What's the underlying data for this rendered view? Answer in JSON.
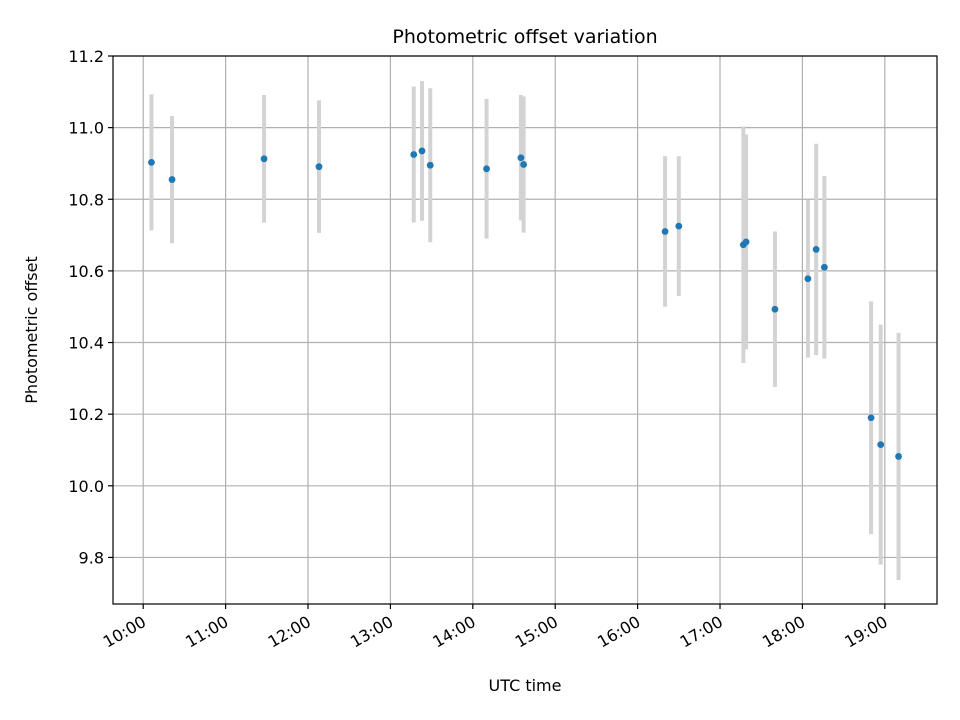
{
  "chart_data": {
    "type": "scatter",
    "title": "Photometric offset variation",
    "xlabel": "UTC time",
    "ylabel": "Photometric offset",
    "x_unit": "hours UTC",
    "xlim": [
      "09:38",
      "19:38"
    ],
    "ylim": [
      9.67,
      11.2
    ],
    "x_ticks": [
      "10:00",
      "11:00",
      "12:00",
      "13:00",
      "14:00",
      "15:00",
      "16:00",
      "17:00",
      "18:00",
      "19:00"
    ],
    "y_ticks": [
      "9.8",
      "10.0",
      "10.2",
      "10.4",
      "10.6",
      "10.8",
      "11.0",
      "11.2"
    ],
    "grid": true,
    "legend": "none",
    "point_color": "#1f77b4",
    "errorbar_color": "#d3d3d3",
    "points": [
      {
        "x": "10:06",
        "y": 10.903,
        "err": 0.19
      },
      {
        "x": "10:21",
        "y": 10.855,
        "err": 0.178
      },
      {
        "x": "11:28",
        "y": 10.913,
        "err": 0.178
      },
      {
        "x": "12:08",
        "y": 10.891,
        "err": 0.185
      },
      {
        "x": "13:17",
        "y": 10.925,
        "err": 0.19
      },
      {
        "x": "13:23",
        "y": 10.935,
        "err": 0.195
      },
      {
        "x": "13:29",
        "y": 10.895,
        "err": 0.215
      },
      {
        "x": "14:10",
        "y": 10.885,
        "err": 0.195
      },
      {
        "x": "14:35",
        "y": 10.916,
        "err": 0.175
      },
      {
        "x": "14:37",
        "y": 10.897,
        "err": 0.19
      },
      {
        "x": "16:20",
        "y": 10.71,
        "err": 0.21
      },
      {
        "x": "16:30",
        "y": 10.725,
        "err": 0.195
      },
      {
        "x": "17:17",
        "y": 10.673,
        "err": 0.33
      },
      {
        "x": "17:19",
        "y": 10.681,
        "err": 0.3
      },
      {
        "x": "17:40",
        "y": 10.493,
        "err": 0.217
      },
      {
        "x": "18:04",
        "y": 10.578,
        "err": 0.22
      },
      {
        "x": "18:10",
        "y": 10.66,
        "err": 0.295
      },
      {
        "x": "18:16",
        "y": 10.61,
        "err": 0.255
      },
      {
        "x": "18:50",
        "y": 10.19,
        "err": 0.325
      },
      {
        "x": "18:57",
        "y": 10.115,
        "err": 0.335
      },
      {
        "x": "19:10",
        "y": 10.082,
        "err": 0.345
      }
    ]
  }
}
